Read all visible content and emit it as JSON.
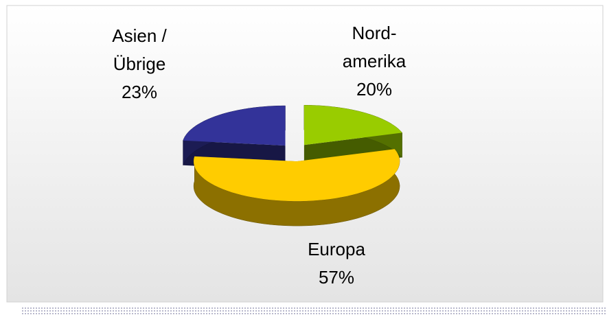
{
  "chart_data": {
    "type": "pie",
    "categories": [
      "Nord-\namerika",
      "Europa",
      "Asien /\nÜbrige"
    ],
    "values": [
      20,
      57,
      23
    ],
    "value_labels": [
      "20%",
      "57%",
      "23%"
    ],
    "colors": [
      "#99cc00",
      "#ffcc00",
      "#333399"
    ],
    "start_angle": -90,
    "exploded": true,
    "three_d": true
  }
}
